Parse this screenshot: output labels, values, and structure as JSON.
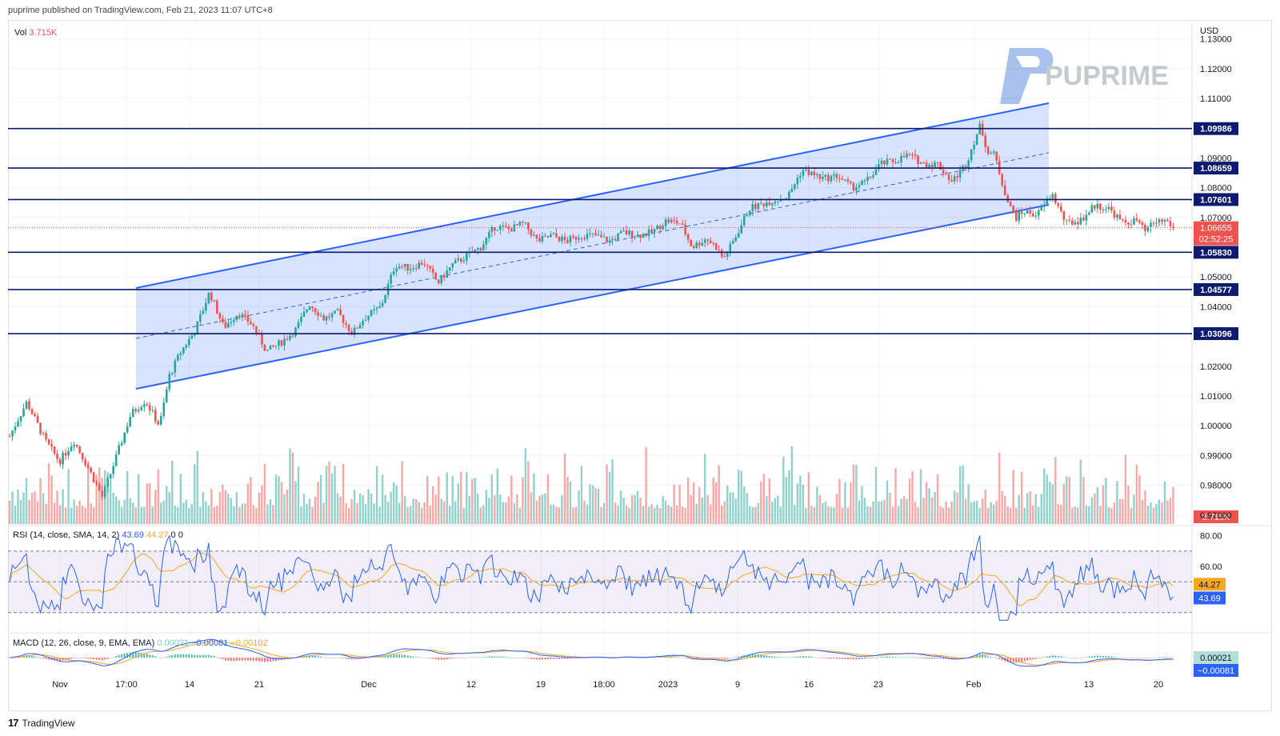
{
  "header": {
    "published": "puprime published on TradingView.com, Feb 21, 2023 11:07 UTC+8"
  },
  "brand": {
    "watermark": "PUPRIME",
    "footer": "TradingView"
  },
  "colors": {
    "up": "#26a69a",
    "down": "#ef5350",
    "level": "#0d1b6e",
    "channel": "#2962ff",
    "rsi": "#2962ff",
    "rsi_ma": "#f5a623"
  },
  "chart_data": [
    {
      "type": "candlestick",
      "panel": "price",
      "currency": "USD",
      "y_ticks": [
        "1.13000",
        "1.12000",
        "1.11000",
        "1.09000",
        "1.08000",
        "1.07000",
        "1.05000",
        "1.04000",
        "1.02000",
        "1.01000",
        "1.00000",
        "0.99000",
        "0.98000",
        "0.97000"
      ],
      "ylim": [
        0.967,
        1.135
      ],
      "x_ticks": [
        "Nov",
        "17:00",
        "14",
        "21",
        "Dec",
        "12",
        "19",
        "18:00",
        "2023",
        "9",
        "16",
        "23",
        "Feb",
        "13",
        "20"
      ],
      "horizontal_levels": [
        "1.09986",
        "1.08659",
        "1.07601",
        "1.05830",
        "1.04577",
        "1.03096"
      ],
      "last_price": "1.06655",
      "countdown": "02:52:25",
      "path_points": [
        [
          0,
          0.9965
        ],
        [
          12,
          1.008
        ],
        [
          25,
          0.995
        ],
        [
          35,
          0.988
        ],
        [
          45,
          0.995
        ],
        [
          55,
          0.986
        ],
        [
          65,
          0.976
        ],
        [
          75,
          0.99
        ],
        [
          85,
          1.004
        ],
        [
          95,
          1.0085
        ],
        [
          105,
          1.0
        ],
        [
          112,
          1.017
        ],
        [
          120,
          1.025
        ],
        [
          130,
          1.032
        ],
        [
          140,
          1.045
        ],
        [
          150,
          1.033
        ],
        [
          160,
          1.038
        ],
        [
          170,
          1.034
        ],
        [
          180,
          1.025
        ],
        [
          190,
          1.028
        ],
        [
          200,
          1.032
        ],
        [
          210,
          1.041
        ],
        [
          220,
          1.036
        ],
        [
          230,
          1.038
        ],
        [
          240,
          1.031
        ],
        [
          248,
          1.036
        ],
        [
          260,
          1.04
        ],
        [
          270,
          1.054
        ],
        [
          280,
          1.053
        ],
        [
          290,
          1.055
        ],
        [
          300,
          1.048
        ],
        [
          310,
          1.054
        ],
        [
          320,
          1.057
        ],
        [
          330,
          1.06
        ],
        [
          340,
          1.067
        ],
        [
          350,
          1.066
        ],
        [
          360,
          1.068
        ],
        [
          370,
          1.062
        ],
        [
          380,
          1.064
        ],
        [
          390,
          1.062
        ],
        [
          400,
          1.064
        ],
        [
          410,
          1.064
        ],
        [
          420,
          1.062
        ],
        [
          430,
          1.065
        ],
        [
          440,
          1.064
        ],
        [
          450,
          1.065
        ],
        [
          460,
          1.069
        ],
        [
          470,
          1.068
        ],
        [
          478,
          1.06
        ],
        [
          488,
          1.063
        ],
        [
          495,
          1.06
        ],
        [
          500,
          1.056
        ],
        [
          508,
          1.063
        ],
        [
          518,
          1.073
        ],
        [
          530,
          1.075
        ],
        [
          545,
          1.077
        ],
        [
          555,
          1.086
        ],
        [
          570,
          1.083
        ],
        [
          580,
          1.084
        ],
        [
          590,
          1.08
        ],
        [
          600,
          1.082
        ],
        [
          610,
          1.088
        ],
        [
          620,
          1.089
        ],
        [
          630,
          1.091
        ],
        [
          640,
          1.088
        ],
        [
          650,
          1.088
        ],
        [
          660,
          1.082
        ],
        [
          670,
          1.088
        ],
        [
          675,
          1.095
        ],
        [
          680,
          1.101
        ],
        [
          685,
          1.092
        ],
        [
          690,
          1.091
        ],
        [
          695,
          1.082
        ],
        [
          700,
          1.074
        ],
        [
          705,
          1.07
        ],
        [
          710,
          1.072
        ],
        [
          720,
          1.071
        ],
        [
          730,
          1.078
        ],
        [
          740,
          1.068
        ],
        [
          750,
          1.069
        ],
        [
          760,
          1.074
        ],
        [
          770,
          1.073
        ],
        [
          780,
          1.068
        ],
        [
          790,
          1.069
        ],
        [
          795,
          1.065
        ],
        [
          802,
          1.0685
        ],
        [
          810,
          1.069
        ],
        [
          815,
          1.0666
        ]
      ]
    },
    {
      "type": "bar",
      "panel": "volume",
      "title": "Vol",
      "last_value": "3.715K"
    },
    {
      "type": "line",
      "panel": "rsi",
      "title": "RSI (14, close, SMA, 14, 2)",
      "values_text": [
        "43.69",
        "44.27",
        "0",
        "0"
      ],
      "y_ticks": [
        "80.00",
        "60.00"
      ],
      "ylim": [
        20,
        85
      ],
      "band": [
        30,
        70
      ],
      "last_rsi": "43.69",
      "last_ma": "44.27"
    },
    {
      "type": "line",
      "panel": "macd",
      "title": "MACD (12, 26, close, 9, EMA, EMA)",
      "values_text": [
        "0.00021",
        "−0.00081",
        "−0.00102"
      ],
      "last_hist": "0.00021",
      "last_macd": "−0.00081"
    }
  ]
}
